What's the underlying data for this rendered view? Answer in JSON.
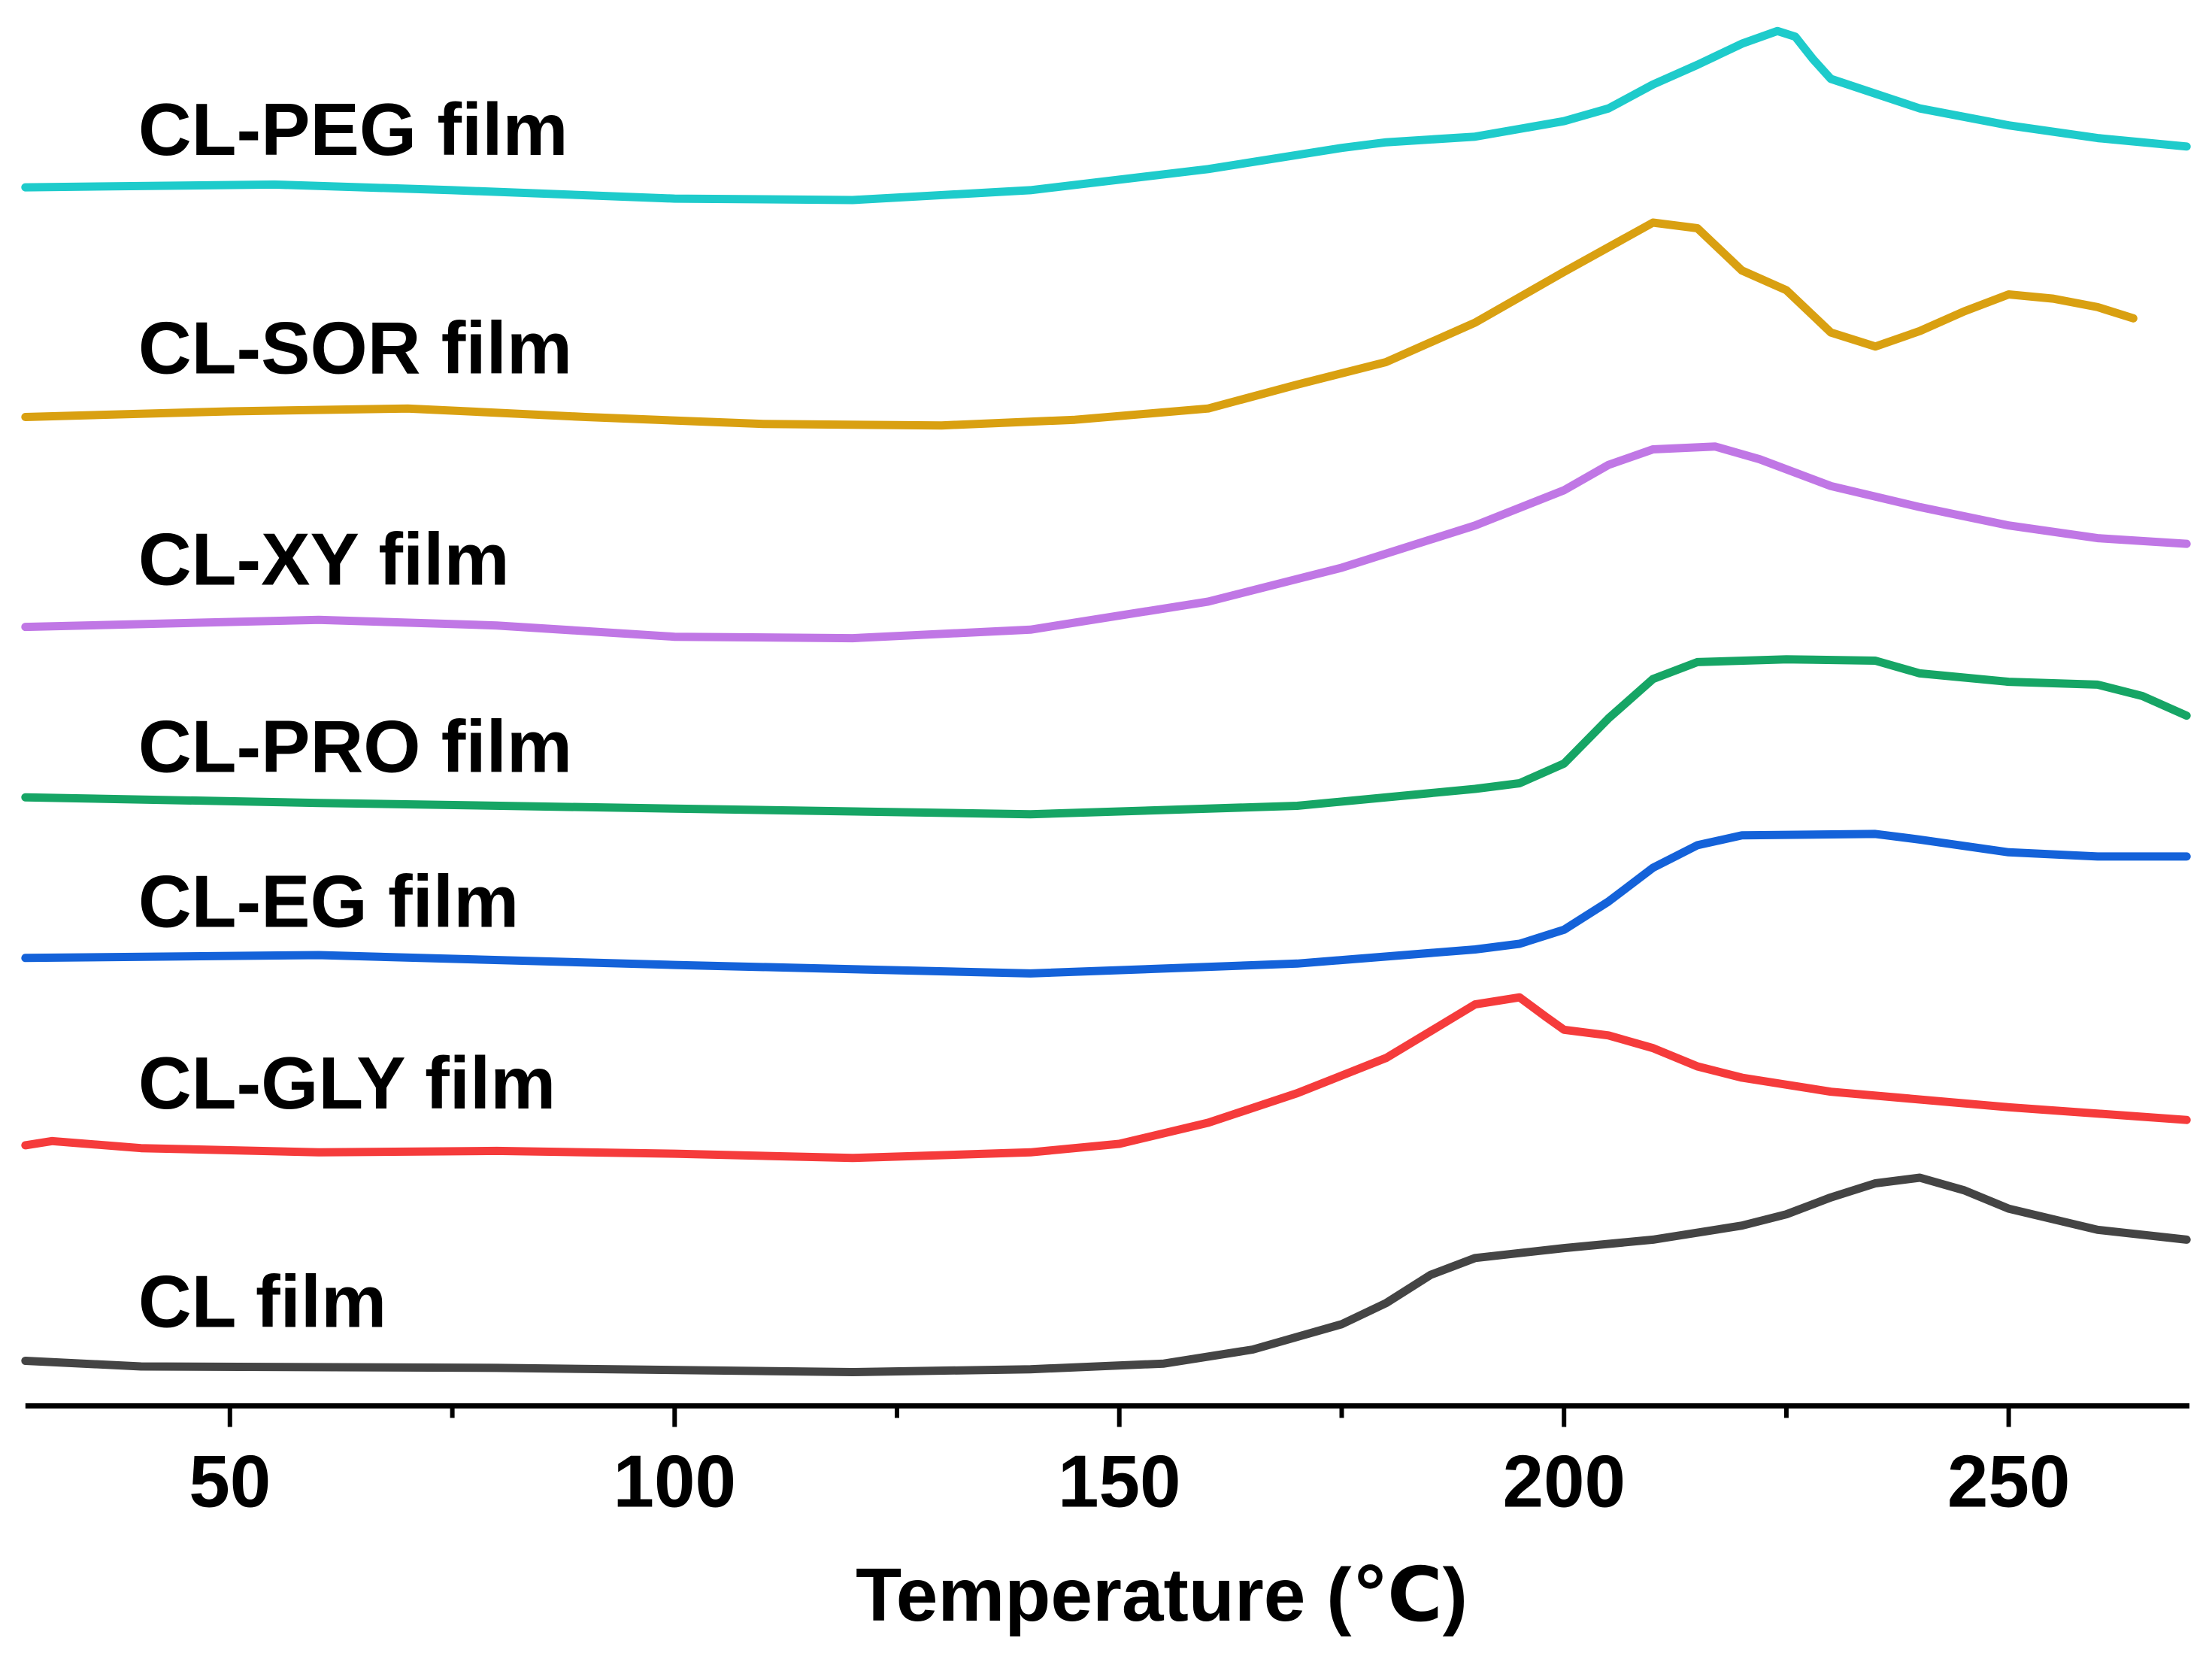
{
  "chart_data": {
    "type": "line",
    "title": "",
    "xlabel": "Temperature (℃)",
    "ylabel": "",
    "xlim": [
      27,
      270
    ],
    "xticks": [
      50,
      100,
      150,
      200,
      250
    ],
    "xticks_minor": [
      75,
      125,
      175,
      225
    ],
    "x_tick_labels": [
      "50",
      "100",
      "150",
      "200",
      "250"
    ],
    "grid": false,
    "legend": "none",
    "series": [
      {
        "name": "CL-PEG film",
        "color": "#1ecbcb",
        "points": [
          [
            27,
            133
          ],
          [
            55,
            131
          ],
          [
            75,
            135
          ],
          [
            100,
            141
          ],
          [
            120,
            142
          ],
          [
            140,
            135
          ],
          [
            160,
            120
          ],
          [
            175,
            105
          ],
          [
            180,
            101
          ],
          [
            190,
            97
          ],
          [
            200,
            86
          ],
          [
            205,
            77
          ],
          [
            210,
            60
          ],
          [
            215,
            46
          ],
          [
            220,
            31
          ],
          [
            224,
            22
          ],
          [
            226,
            26
          ],
          [
            228,
            42
          ],
          [
            230,
            56
          ],
          [
            240,
            77
          ],
          [
            250,
            89
          ],
          [
            260,
            98
          ],
          [
            270,
            104
          ]
        ]
      },
      {
        "name": "CL-SOR film",
        "color": "#d9a011",
        "points": [
          [
            27,
            296
          ],
          [
            50,
            292
          ],
          [
            70,
            290
          ],
          [
            90,
            296
          ],
          [
            110,
            301
          ],
          [
            130,
            302
          ],
          [
            145,
            298
          ],
          [
            160,
            290
          ],
          [
            170,
            273
          ],
          [
            180,
            257
          ],
          [
            190,
            229
          ],
          [
            200,
            193
          ],
          [
            210,
            158
          ],
          [
            215,
            162
          ],
          [
            220,
            192
          ],
          [
            225,
            206
          ],
          [
            230,
            236
          ],
          [
            235,
            246
          ],
          [
            240,
            235
          ],
          [
            245,
            221
          ],
          [
            250,
            209
          ],
          [
            255,
            212
          ],
          [
            260,
            218
          ],
          [
            264,
            226
          ]
        ]
      },
      {
        "name": "CL-XY film",
        "color": "#c077e5",
        "points": [
          [
            27,
            445
          ],
          [
            60,
            440
          ],
          [
            80,
            444
          ],
          [
            100,
            452
          ],
          [
            120,
            453
          ],
          [
            140,
            447
          ],
          [
            160,
            427
          ],
          [
            175,
            403
          ],
          [
            190,
            373
          ],
          [
            200,
            348
          ],
          [
            205,
            330
          ],
          [
            210,
            319
          ],
          [
            217,
            317
          ],
          [
            222,
            326
          ],
          [
            230,
            345
          ],
          [
            240,
            360
          ],
          [
            250,
            373
          ],
          [
            260,
            382
          ],
          [
            270,
            386
          ]
        ]
      },
      {
        "name": "CL-PRO film",
        "color": "#16a565",
        "points": [
          [
            27,
            566
          ],
          [
            60,
            570
          ],
          [
            100,
            574
          ],
          [
            140,
            578
          ],
          [
            170,
            572
          ],
          [
            190,
            560
          ],
          [
            195,
            556
          ],
          [
            200,
            542
          ],
          [
            205,
            510
          ],
          [
            210,
            482
          ],
          [
            215,
            470
          ],
          [
            225,
            468
          ],
          [
            235,
            469
          ],
          [
            240,
            478
          ],
          [
            250,
            484
          ],
          [
            260,
            486
          ],
          [
            265,
            494
          ],
          [
            270,
            508
          ]
        ]
      },
      {
        "name": "CL-EG film",
        "color": "#1462d9",
        "points": [
          [
            27,
            680
          ],
          [
            60,
            678
          ],
          [
            100,
            685
          ],
          [
            140,
            691
          ],
          [
            170,
            684
          ],
          [
            190,
            674
          ],
          [
            195,
            670
          ],
          [
            200,
            660
          ],
          [
            205,
            640
          ],
          [
            210,
            616
          ],
          [
            215,
            600
          ],
          [
            220,
            593
          ],
          [
            235,
            592
          ],
          [
            240,
            596
          ],
          [
            250,
            605
          ],
          [
            260,
            608
          ],
          [
            270,
            608
          ]
        ]
      },
      {
        "name": "CL-GLY film",
        "color": "#f53b3b",
        "points": [
          [
            27,
            813
          ],
          [
            30,
            810
          ],
          [
            40,
            815
          ],
          [
            60,
            818
          ],
          [
            80,
            817
          ],
          [
            100,
            819
          ],
          [
            120,
            822
          ],
          [
            140,
            818
          ],
          [
            150,
            812
          ],
          [
            160,
            797
          ],
          [
            170,
            776
          ],
          [
            180,
            751
          ],
          [
            185,
            732
          ],
          [
            190,
            713
          ],
          [
            195,
            708
          ],
          [
            198,
            722
          ],
          [
            200,
            731
          ],
          [
            205,
            735
          ],
          [
            210,
            744
          ],
          [
            215,
            757
          ],
          [
            220,
            765
          ],
          [
            230,
            775
          ],
          [
            250,
            786
          ],
          [
            270,
            795
          ]
        ]
      },
      {
        "name": "CL film",
        "color": "#444444",
        "points": [
          [
            27,
            966
          ],
          [
            40,
            970
          ],
          [
            80,
            971
          ],
          [
            120,
            974
          ],
          [
            140,
            972
          ],
          [
            155,
            968
          ],
          [
            165,
            958
          ],
          [
            175,
            940
          ],
          [
            180,
            925
          ],
          [
            185,
            905
          ],
          [
            190,
            893
          ],
          [
            200,
            886
          ],
          [
            210,
            880
          ],
          [
            220,
            870
          ],
          [
            225,
            862
          ],
          [
            230,
            850
          ],
          [
            235,
            840
          ],
          [
            240,
            836
          ],
          [
            245,
            845
          ],
          [
            250,
            858
          ],
          [
            260,
            873
          ],
          [
            270,
            880
          ]
        ]
      }
    ]
  }
}
